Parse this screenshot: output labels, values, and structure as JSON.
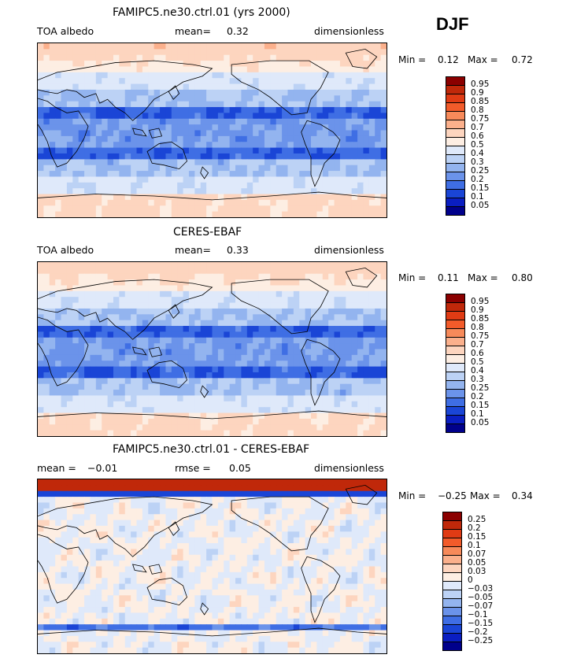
{
  "season": "DJF",
  "panels": [
    {
      "title": "FAMIPC5.ne30.ctrl.01 (yrs 2000)",
      "left_label": "TOA albedo",
      "middle_label": "mean=",
      "middle_value": "0.32",
      "right_label": "dimensionless",
      "min_label": "Min =",
      "min_value": "0.12",
      "max_label": "Max =",
      "max_value": "0.72",
      "field": "model",
      "colorbar": {
        "labels": [
          "0.95",
          "0.9",
          "0.85",
          "0.8",
          "0.75",
          "0.7",
          "0.6",
          "0.5",
          "0.4",
          "0.3",
          "0.25",
          "0.2",
          "0.15",
          "0.1",
          "0.05"
        ],
        "colors": [
          "#8b0000",
          "#c0280a",
          "#e03b14",
          "#f25b2a",
          "#f78a5a",
          "#fbb08c",
          "#fdd5bf",
          "#fdeee3",
          "#dfe9fa",
          "#bcd2f5",
          "#93b4ef",
          "#6b93ea",
          "#3f6ee4",
          "#1a45d6",
          "#0a1ec2",
          "#00008b"
        ]
      }
    },
    {
      "title": "CERES-EBAF",
      "left_label": "TOA albedo",
      "middle_label": "mean=",
      "middle_value": "0.33",
      "right_label": "dimensionless",
      "min_label": "Min =",
      "min_value": "0.11",
      "max_label": "Max =",
      "max_value": "0.80",
      "field": "obs",
      "colorbar": {
        "labels": [
          "0.95",
          "0.9",
          "0.85",
          "0.8",
          "0.75",
          "0.7",
          "0.6",
          "0.5",
          "0.4",
          "0.3",
          "0.25",
          "0.2",
          "0.15",
          "0.1",
          "0.05"
        ],
        "colors": [
          "#8b0000",
          "#c0280a",
          "#e03b14",
          "#f25b2a",
          "#f78a5a",
          "#fbb08c",
          "#fdd5bf",
          "#fdeee3",
          "#dfe9fa",
          "#bcd2f5",
          "#93b4ef",
          "#6b93ea",
          "#3f6ee4",
          "#1a45d6",
          "#0a1ec2",
          "#00008b"
        ]
      }
    },
    {
      "title": "FAMIPC5.ne30.ctrl.01 - CERES-EBAF",
      "left_label": "mean =",
      "left_value": "−0.01",
      "middle_label": "rmse =",
      "middle_value": "0.05",
      "right_label": "dimensionless",
      "min_label": "Min =",
      "min_value": "−0.25",
      "max_label": "Max =",
      "max_value": "0.34",
      "field": "diff",
      "colorbar": {
        "labels": [
          "0.25",
          "0.2",
          "0.15",
          "0.1",
          "0.07",
          "0.05",
          "0.03",
          "0",
          "−0.03",
          "−0.05",
          "−0.07",
          "−0.1",
          "−0.15",
          "−0.2",
          "−0.25"
        ],
        "colors": [
          "#8b0000",
          "#c0280a",
          "#e03b14",
          "#f25b2a",
          "#f78a5a",
          "#fbb08c",
          "#fdd5bf",
          "#fdeee3",
          "#dfe9fa",
          "#bcd2f5",
          "#93b4ef",
          "#6b93ea",
          "#3f6ee4",
          "#1a45d6",
          "#0a1ec2",
          "#00008b"
        ]
      }
    }
  ]
}
